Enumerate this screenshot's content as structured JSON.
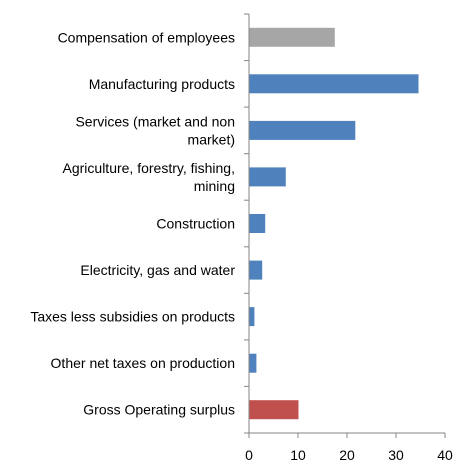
{
  "chart_data": {
    "type": "bar",
    "orientation": "horizontal",
    "title": "",
    "xlabel": "",
    "ylabel": "",
    "xlim": [
      0,
      40
    ],
    "x_ticks": [
      0,
      10,
      20,
      30,
      40
    ],
    "grid": false,
    "legend": "none",
    "categories": [
      [
        "Compensation of employees"
      ],
      [
        "Manufacturing products"
      ],
      [
        "Services (market and non",
        "market)"
      ],
      [
        "Agriculture, forestry, fishing,",
        "mining"
      ],
      [
        "Construction"
      ],
      [
        "Electricity, gas and water"
      ],
      [
        "Taxes less subsidies on products"
      ],
      [
        "Other net taxes on production"
      ],
      [
        "Gross Operating surplus"
      ]
    ],
    "values": [
      17.5,
      34.6,
      21.7,
      7.5,
      3.3,
      2.7,
      1.1,
      1.5,
      10.1
    ],
    "bar_colors": [
      "#a6a6a6",
      "#4f81bd",
      "#4f81bd",
      "#4f81bd",
      "#4f81bd",
      "#4f81bd",
      "#4f81bd",
      "#4f81bd",
      "#c0504d"
    ],
    "axis_color": "#868686"
  }
}
